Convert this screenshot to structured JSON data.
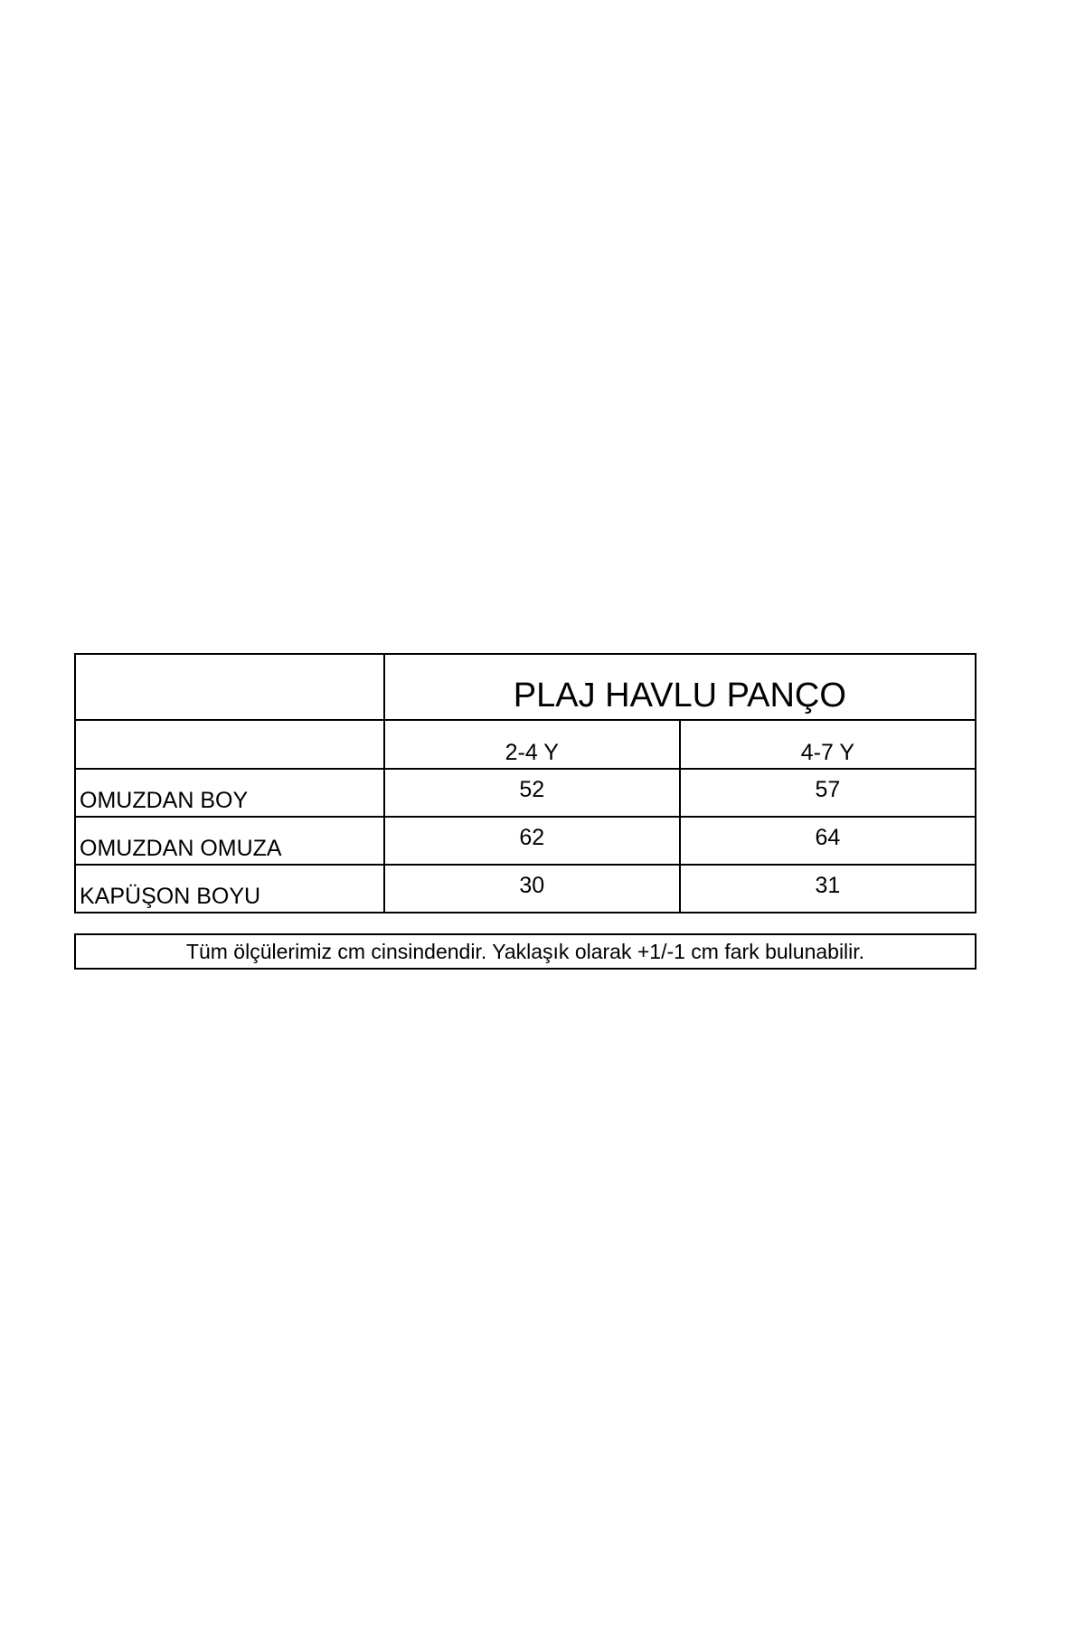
{
  "table": {
    "title": "PLAJ HAVLU PANÇO",
    "columns": [
      "2-4 Y",
      "4-7 Y"
    ],
    "rows": [
      {
        "label": "OMUZDAN BOY",
        "values": [
          "52",
          "57"
        ]
      },
      {
        "label": "OMUZDAN OMUZA",
        "values": [
          "62",
          "64"
        ]
      },
      {
        "label": "KAPÜŞON BOYU",
        "values": [
          "30",
          "31"
        ]
      }
    ]
  },
  "note": "Tüm ölçülerimiz cm cinsindendir.  Yaklaşık olarak +1/-1 cm fark bulunabilir."
}
